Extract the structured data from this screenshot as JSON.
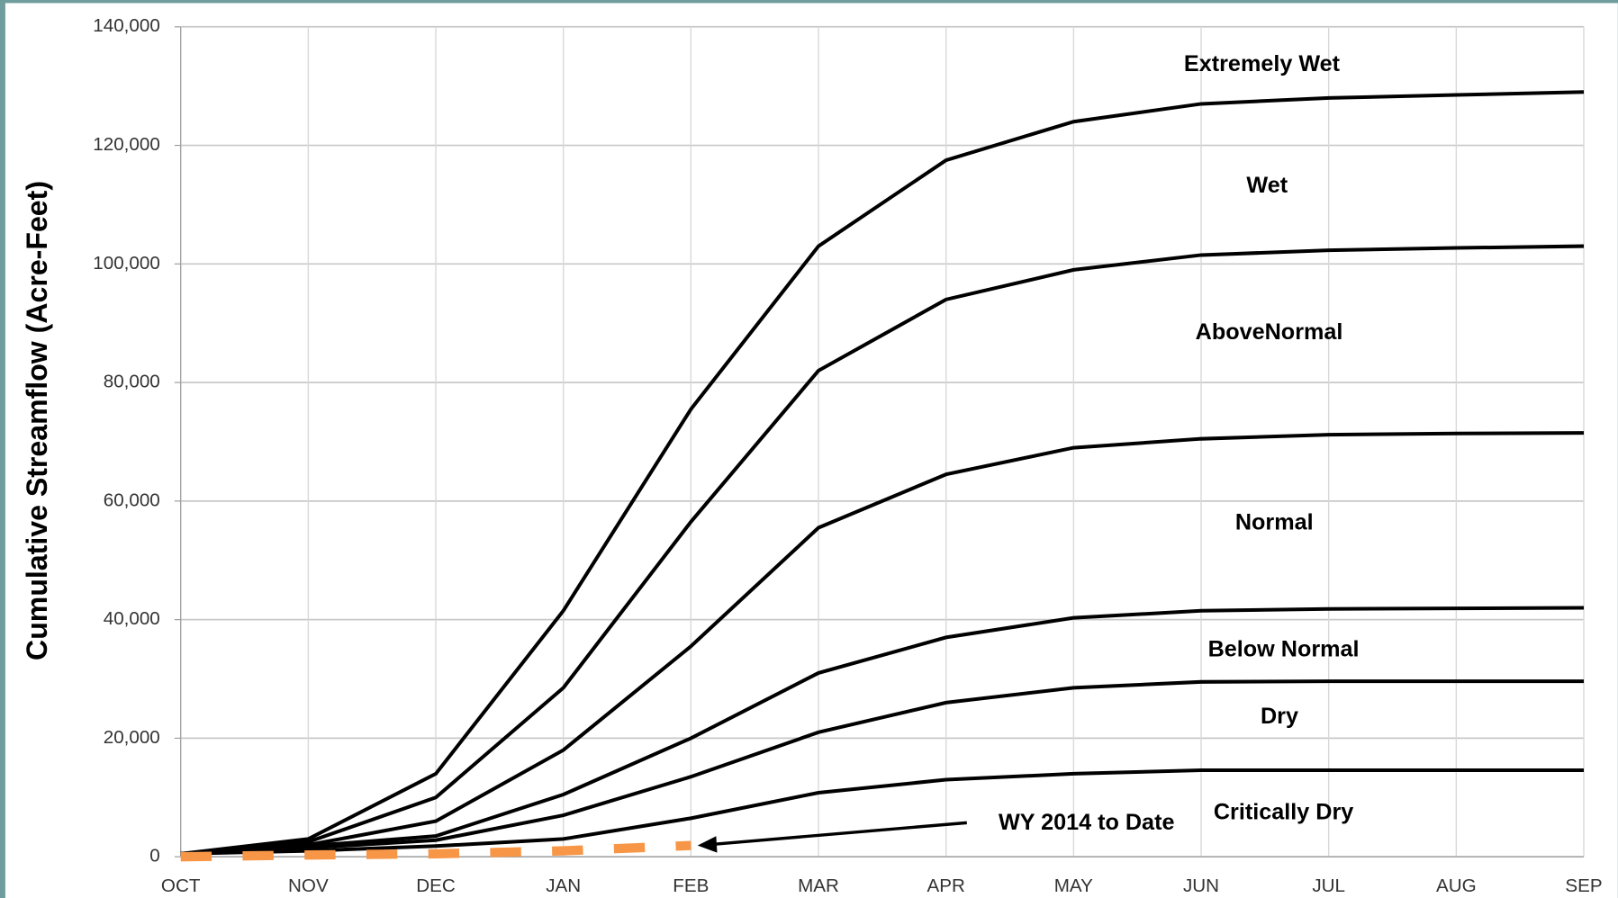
{
  "chart_data": {
    "type": "line",
    "y_label": "Cumulative Streamflow (Acre-Feet)",
    "categories": [
      "OCT",
      "NOV",
      "DEC",
      "JAN",
      "FEB",
      "MAR",
      "APR",
      "MAY",
      "JUN",
      "JUL",
      "AUG",
      "SEP"
    ],
    "series": [
      {
        "color": "#000000",
        "values": [
          500,
          3000,
          14000,
          41500,
          75500,
          103000,
          117500,
          124000,
          127000,
          128000,
          128500,
          129000
        ]
      },
      {
        "color": "#000000",
        "values": [
          500,
          2500,
          10000,
          28500,
          56500,
          82000,
          94000,
          99000,
          101500,
          102300,
          102700,
          103000
        ]
      },
      {
        "color": "#000000",
        "values": [
          500,
          2000,
          6000,
          18000,
          35500,
          55500,
          64500,
          69000,
          70500,
          71200,
          71400,
          71500
        ]
      },
      {
        "color": "#000000",
        "values": [
          500,
          1800,
          3500,
          10500,
          20000,
          31000,
          37000,
          40300,
          41500,
          41800,
          41900,
          42000
        ]
      },
      {
        "color": "#000000",
        "values": [
          500,
          1500,
          2800,
          7000,
          13500,
          21000,
          26000,
          28500,
          29500,
          29600,
          29600,
          29600
        ]
      },
      {
        "color": "#000000",
        "values": [
          500,
          1000,
          1800,
          3000,
          6500,
          10800,
          13000,
          14000,
          14600,
          14600,
          14600,
          14600
        ]
      },
      {
        "color": "#f79646",
        "dashed": true,
        "values": [
          0,
          300,
          500,
          1000,
          1900,
          null,
          null,
          null,
          null,
          null,
          null,
          null
        ]
      }
    ],
    "annotations": [
      "Extremely Wet",
      "Wet",
      "AboveNormal",
      "Normal",
      "Below Normal",
      "Dry",
      "Critically Dry",
      "WY 2014 to Date"
    ],
    "ylim": [
      0,
      140000
    ],
    "yticks": [
      0,
      {
        "value": 20000,
        "label": "20,000"
      },
      {
        "value": 40000,
        "label": "40,000"
      },
      {
        "value": 60000,
        "label": "60,000"
      },
      {
        "value": 80000,
        "label": "80,000"
      },
      {
        "value": 100000,
        "label": "100,000"
      },
      {
        "value": 120000,
        "label": "120,000"
      },
      {
        "value": 140000,
        "label": "140,000"
      }
    ],
    "grid": true
  }
}
